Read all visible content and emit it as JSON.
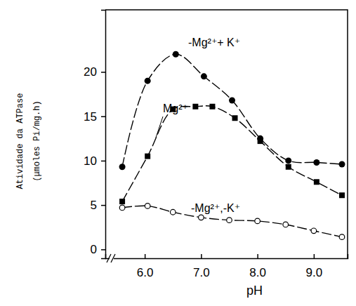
{
  "chart_data": {
    "type": "line",
    "x_label": "pH",
    "y_label": [
      "Atividade da ATPase",
      "(μmoles Pi/mg.h)"
    ],
    "xlim": [
      5.3,
      9.6
    ],
    "ylim": [
      -1,
      27
    ],
    "xticks": [
      {
        "value": 6,
        "label": "6.0"
      },
      {
        "value": 7,
        "label": "7.0"
      },
      {
        "value": 8,
        "label": "8.0"
      },
      {
        "value": 9,
        "label": "9.0"
      }
    ],
    "yticks": [
      0,
      5,
      10,
      15,
      20
    ],
    "grid": false,
    "series": [
      {
        "name": "-Mg²⁺+ K⁺",
        "color": "#000000",
        "marker": "circle",
        "line_style": "dashed",
        "x": [
          5.6,
          6.05,
          6.55,
          7.05,
          7.55,
          8.05,
          8.55,
          9.05,
          9.5
        ],
        "values": [
          9.3,
          19,
          22,
          19.5,
          16.8,
          12.5,
          10,
          9.8,
          9.6
        ]
      },
      {
        "name": "Mg²⁺",
        "color": "#000000",
        "marker": "square",
        "line_style": "dashed",
        "x": [
          5.6,
          6.05,
          6.5,
          6.9,
          7.2,
          7.6,
          8.05,
          8.55,
          9.05,
          9.5
        ],
        "values": [
          5.4,
          10.5,
          15.8,
          16.1,
          16.1,
          14.8,
          12.2,
          9.3,
          7.6,
          6.1
        ]
      },
      {
        "name": "-Mg²⁺,-K⁺",
        "color": "#000000",
        "marker": "circle-open",
        "line_style": "dashed",
        "x": [
          5.6,
          6.05,
          6.5,
          7.0,
          7.5,
          8.0,
          8.5,
          9.0,
          9.5
        ],
        "values": [
          4.7,
          4.9,
          4.2,
          3.6,
          3.3,
          3.2,
          2.8,
          2.1,
          1.4
        ]
      }
    ]
  }
}
